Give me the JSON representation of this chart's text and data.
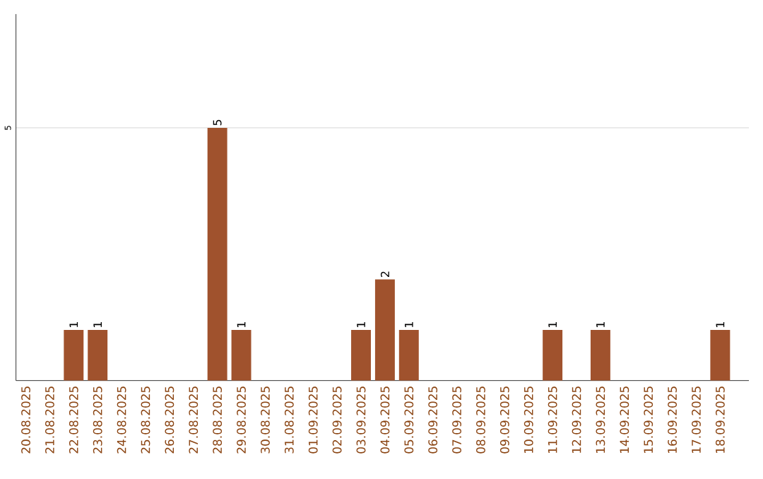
{
  "chart_data": {
    "type": "bar",
    "categories": [
      "20.08.2025",
      "21.08.2025",
      "22.08.2025",
      "23.08.2025",
      "24.08.2025",
      "25.08.2025",
      "26.08.2025",
      "27.08.2025",
      "28.08.2025",
      "29.08.2025",
      "30.08.2025",
      "31.08.2025",
      "01.09.2025",
      "02.09.2025",
      "03.09.2025",
      "04.09.2025",
      "05.09.2025",
      "06.09.2025",
      "07.09.2025",
      "08.09.2025",
      "09.09.2025",
      "10.09.2025",
      "11.09.2025",
      "12.09.2025",
      "13.09.2025",
      "14.09.2025",
      "15.09.2025",
      "16.09.2025",
      "17.09.2025",
      "18.09.2025"
    ],
    "values": [
      0,
      0,
      1,
      1,
      0,
      0,
      0,
      0,
      5,
      1,
      0,
      0,
      0,
      0,
      1,
      2,
      1,
      0,
      0,
      0,
      0,
      0,
      1,
      0,
      1,
      0,
      0,
      0,
      0,
      1
    ],
    "value_labels": [
      null,
      null,
      "1",
      "1",
      null,
      null,
      null,
      null,
      "5",
      "1",
      null,
      null,
      null,
      null,
      "1",
      "2",
      "1",
      null,
      null,
      null,
      null,
      null,
      "1",
      null,
      "1",
      null,
      null,
      null,
      null,
      "1"
    ],
    "color": "#a0522d",
    "ylim": [
      0,
      7.25
    ],
    "yticks": [
      5
    ],
    "grid": "y"
  }
}
